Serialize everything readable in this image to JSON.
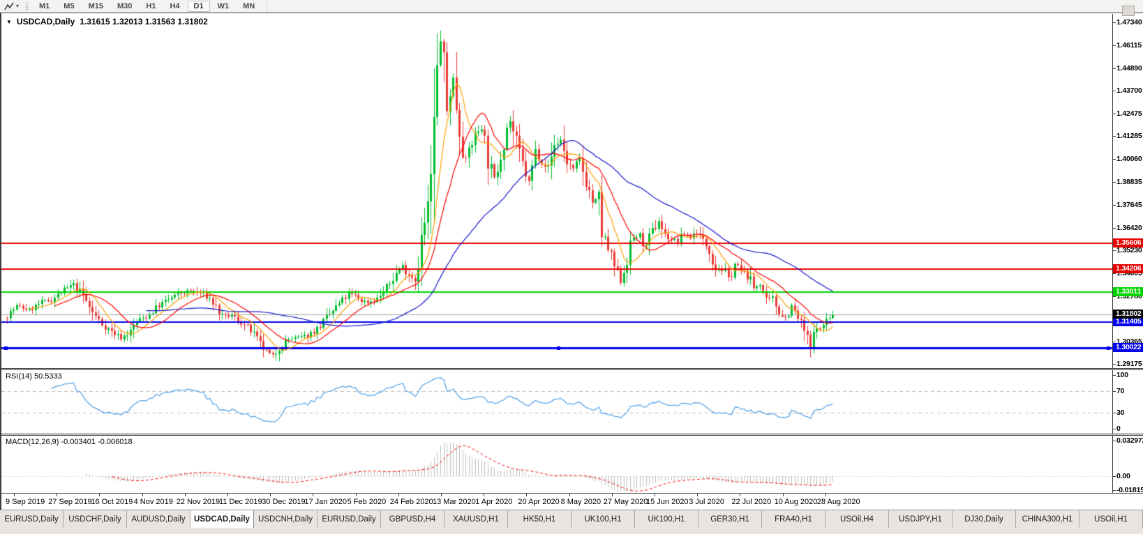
{
  "toolbar": {
    "timeframes": [
      "M1",
      "M5",
      "M15",
      "M30",
      "H1",
      "H4",
      "D1",
      "W1",
      "MN"
    ],
    "active_timeframe": "D1",
    "drawing_tool_caret": "▾"
  },
  "chart": {
    "title": "USDCAD,Daily",
    "ohlc": "1.31615 1.32013 1.31563 1.31802",
    "open": "1.31615",
    "high": "1.32013",
    "low": "1.31563",
    "close": "1.31802",
    "collapse_glyph": "▼"
  },
  "price_axis": {
    "ticks": [
      "1.47340",
      "1.46115",
      "1.44890",
      "1.43700",
      "1.42475",
      "1.41285",
      "1.40060",
      "1.38835",
      "1.37645",
      "1.36420",
      "1.35230",
      "1.34005",
      "1.32780",
      "1.31555",
      "1.30365",
      "1.29175"
    ]
  },
  "hlines": [
    {
      "price": 1.35606,
      "label": "1.35606",
      "color": "#E60000",
      "width": 2,
      "selected": false
    },
    {
      "price": 1.34206,
      "label": "1.34206",
      "color": "#E60000",
      "width": 2,
      "selected": false
    },
    {
      "price": 1.33011,
      "label": "1.33011",
      "color": "#00D300",
      "width": 2,
      "selected": false
    },
    {
      "price": 1.31405,
      "label": "1.31405",
      "color": "#0000EE",
      "width": 2,
      "selected": false
    },
    {
      "price": 1.30022,
      "label": "1.30022",
      "color": "#0000EE",
      "width": 3,
      "selected": true
    }
  ],
  "price_line": {
    "price": 1.31802,
    "label": "1.31802",
    "line_color": "#A0A0A0",
    "badge_color": "#000000"
  },
  "rsi": {
    "label": "RSI(14) 50.5333",
    "name": "RSI(14)",
    "value": "50.5333",
    "levels": [
      "100",
      "70",
      "30",
      "0"
    ],
    "line_color": "#4D9EE8"
  },
  "macd": {
    "label": "MACD(12,26,9) -0.003401 -0.006018",
    "name": "MACD(12,26,9)",
    "main_value": "-0.003401",
    "signal_value": "-0.006018",
    "axis": [
      "0.032972",
      "0.00",
      "-0.018154"
    ],
    "hist_color": "#BDBDBD",
    "signal_color": "#FF0000"
  },
  "date_axis": [
    "9 Sep 2019",
    "27 Sep 2019",
    "16 Oct 2019",
    "4 Nov 2019",
    "22 Nov 2019",
    "11 Dec 2019",
    "30 Dec 2019",
    "17 Jan 2020",
    "5 Feb 2020",
    "24 Feb 2020",
    "13 Mar 2020",
    "1 Apr 2020",
    "20 Apr 2020",
    "8 May 2020",
    "27 May 2020",
    "15 Jun 2020",
    "3 Jul 2020",
    "22 Jul 2020",
    "10 Aug 2020",
    "28 Aug 2020"
  ],
  "tabs": {
    "items": [
      "EURUSD,Daily",
      "USDCHF,Daily",
      "AUDUSD,Daily",
      "USDCAD,Daily",
      "USDCNH,Daily",
      "EURUSD,Daily",
      "GBPUSD,H4",
      "XAUUSD,H1",
      "HK50,H1",
      "UK100,H1",
      "UK100,H1",
      "GER30,H1",
      "FRA40,H1",
      "USOil,H4",
      "USDJPY,H1",
      "DJ30,Daily",
      "CHINA300,H1",
      "USOil,H1"
    ],
    "active_index": 3
  },
  "chart_data": {
    "type": "candlestick",
    "symbol": "USDCAD",
    "period": "Daily",
    "x_start": "9 Sep 2019",
    "x_end": "Sep 2020",
    "price_max_visible": 1.4734,
    "price_min_visible": 1.2896,
    "up_color": "#00BE2D",
    "down_color": "#EA3B34",
    "candle_count": 262,
    "seed": 7,
    "anchors": [
      [
        0,
        1.3175
      ],
      [
        3,
        1.3225
      ],
      [
        7,
        1.3205
      ],
      [
        11,
        1.3245
      ],
      [
        14,
        1.326
      ],
      [
        18,
        1.331
      ],
      [
        21,
        1.334
      ],
      [
        24,
        1.328
      ],
      [
        27,
        1.319
      ],
      [
        30,
        1.313
      ],
      [
        33,
        1.309
      ],
      [
        36,
        1.3055
      ],
      [
        39,
        1.309
      ],
      [
        41,
        1.3145
      ],
      [
        44,
        1.317
      ],
      [
        48,
        1.323
      ],
      [
        52,
        1.327
      ],
      [
        55,
        1.3295
      ],
      [
        58,
        1.3305
      ],
      [
        61,
        1.3295
      ],
      [
        64,
        1.3265
      ],
      [
        66,
        1.322
      ],
      [
        68,
        1.317
      ],
      [
        71,
        1.3175
      ],
      [
        74,
        1.314
      ],
      [
        77,
        1.3095
      ],
      [
        80,
        1.302
      ],
      [
        82,
        1.298
      ],
      [
        84,
        1.2958
      ],
      [
        86,
        1.3005
      ],
      [
        89,
        1.305
      ],
      [
        93,
        1.306
      ],
      [
        95,
        1.307
      ],
      [
        98,
        1.3105
      ],
      [
        101,
        1.316
      ],
      [
        104,
        1.322
      ],
      [
        106,
        1.3255
      ],
      [
        108,
        1.329
      ],
      [
        110,
        1.328
      ],
      [
        112,
        1.3255
      ],
      [
        114,
        1.3245
      ],
      [
        117,
        1.3265
      ],
      [
        120,
        1.332
      ],
      [
        123,
        1.34
      ],
      [
        125,
        1.344
      ],
      [
        127,
        1.3395
      ],
      [
        129,
        1.337
      ],
      [
        131,
        1.358
      ],
      [
        132,
        1.366
      ],
      [
        133,
        1.374
      ],
      [
        134,
        1.39
      ],
      [
        135,
        1.415
      ],
      [
        136,
        1.445
      ],
      [
        137,
        1.464
      ],
      [
        138,
        1.447
      ],
      [
        139,
        1.426
      ],
      [
        140,
        1.438
      ],
      [
        141,
        1.443
      ],
      [
        142,
        1.43
      ],
      [
        143,
        1.418
      ],
      [
        144,
        1.408
      ],
      [
        145,
        1.4
      ],
      [
        146,
        1.406
      ],
      [
        148,
        1.413
      ],
      [
        150,
        1.419
      ],
      [
        152,
        1.4
      ],
      [
        154,
        1.39
      ],
      [
        156,
        1.404
      ],
      [
        158,
        1.418
      ],
      [
        159,
        1.421
      ],
      [
        161,
        1.409
      ],
      [
        163,
        1.398
      ],
      [
        165,
        1.388
      ],
      [
        167,
        1.405
      ],
      [
        169,
        1.4
      ],
      [
        171,
        1.396
      ],
      [
        173,
        1.408
      ],
      [
        175,
        1.411
      ],
      [
        177,
        1.399
      ],
      [
        179,
        1.395
      ],
      [
        181,
        1.4
      ],
      [
        183,
        1.389
      ],
      [
        185,
        1.378
      ],
      [
        187,
        1.379
      ],
      [
        188,
        1.362
      ],
      [
        189,
        1.357
      ],
      [
        191,
        1.348
      ],
      [
        193,
        1.339
      ],
      [
        194,
        1.336
      ],
      [
        196,
        1.348
      ],
      [
        198,
        1.359
      ],
      [
        200,
        1.36
      ],
      [
        202,
        1.354
      ],
      [
        204,
        1.362
      ],
      [
        206,
        1.368
      ],
      [
        208,
        1.36
      ],
      [
        210,
        1.358
      ],
      [
        212,
        1.357
      ],
      [
        214,
        1.361
      ],
      [
        216,
        1.359
      ],
      [
        218,
        1.362
      ],
      [
        220,
        1.357
      ],
      [
        222,
        1.353
      ],
      [
        224,
        1.343
      ],
      [
        226,
        1.342
      ],
      [
        228,
        1.337
      ],
      [
        230,
        1.345
      ],
      [
        232,
        1.341
      ],
      [
        234,
        1.339
      ],
      [
        236,
        1.332
      ],
      [
        238,
        1.335
      ],
      [
        240,
        1.325
      ],
      [
        242,
        1.3265
      ],
      [
        244,
        1.3195
      ],
      [
        246,
        1.3165
      ],
      [
        248,
        1.3225
      ],
      [
        250,
        1.316
      ],
      [
        252,
        1.3096
      ],
      [
        253,
        1.3045
      ],
      [
        254,
        1.3005
      ],
      [
        255,
        1.306
      ],
      [
        256,
        1.3128
      ],
      [
        257,
        1.31
      ],
      [
        258,
        1.3125
      ],
      [
        259,
        1.316
      ],
      [
        260,
        1.315
      ],
      [
        261,
        1.31802
      ]
    ],
    "wick_overrides": [
      {
        "i": 137,
        "h": 1.469
      },
      {
        "i": 84,
        "l": 1.2949
      },
      {
        "i": 254,
        "l": 1.2952
      }
    ],
    "last_candle": {
      "o": 1.31615,
      "h": 1.32013,
      "l": 1.31563,
      "c": 1.31802
    },
    "mas": [
      {
        "period": 8,
        "color": "#FF9E00",
        "name": "MA-fast-orange"
      },
      {
        "period": 16,
        "color": "#FF0000",
        "name": "MA-mid-red"
      },
      {
        "period": 45,
        "color": "#1414CC",
        "name": "MA-slow-blue"
      }
    ]
  }
}
